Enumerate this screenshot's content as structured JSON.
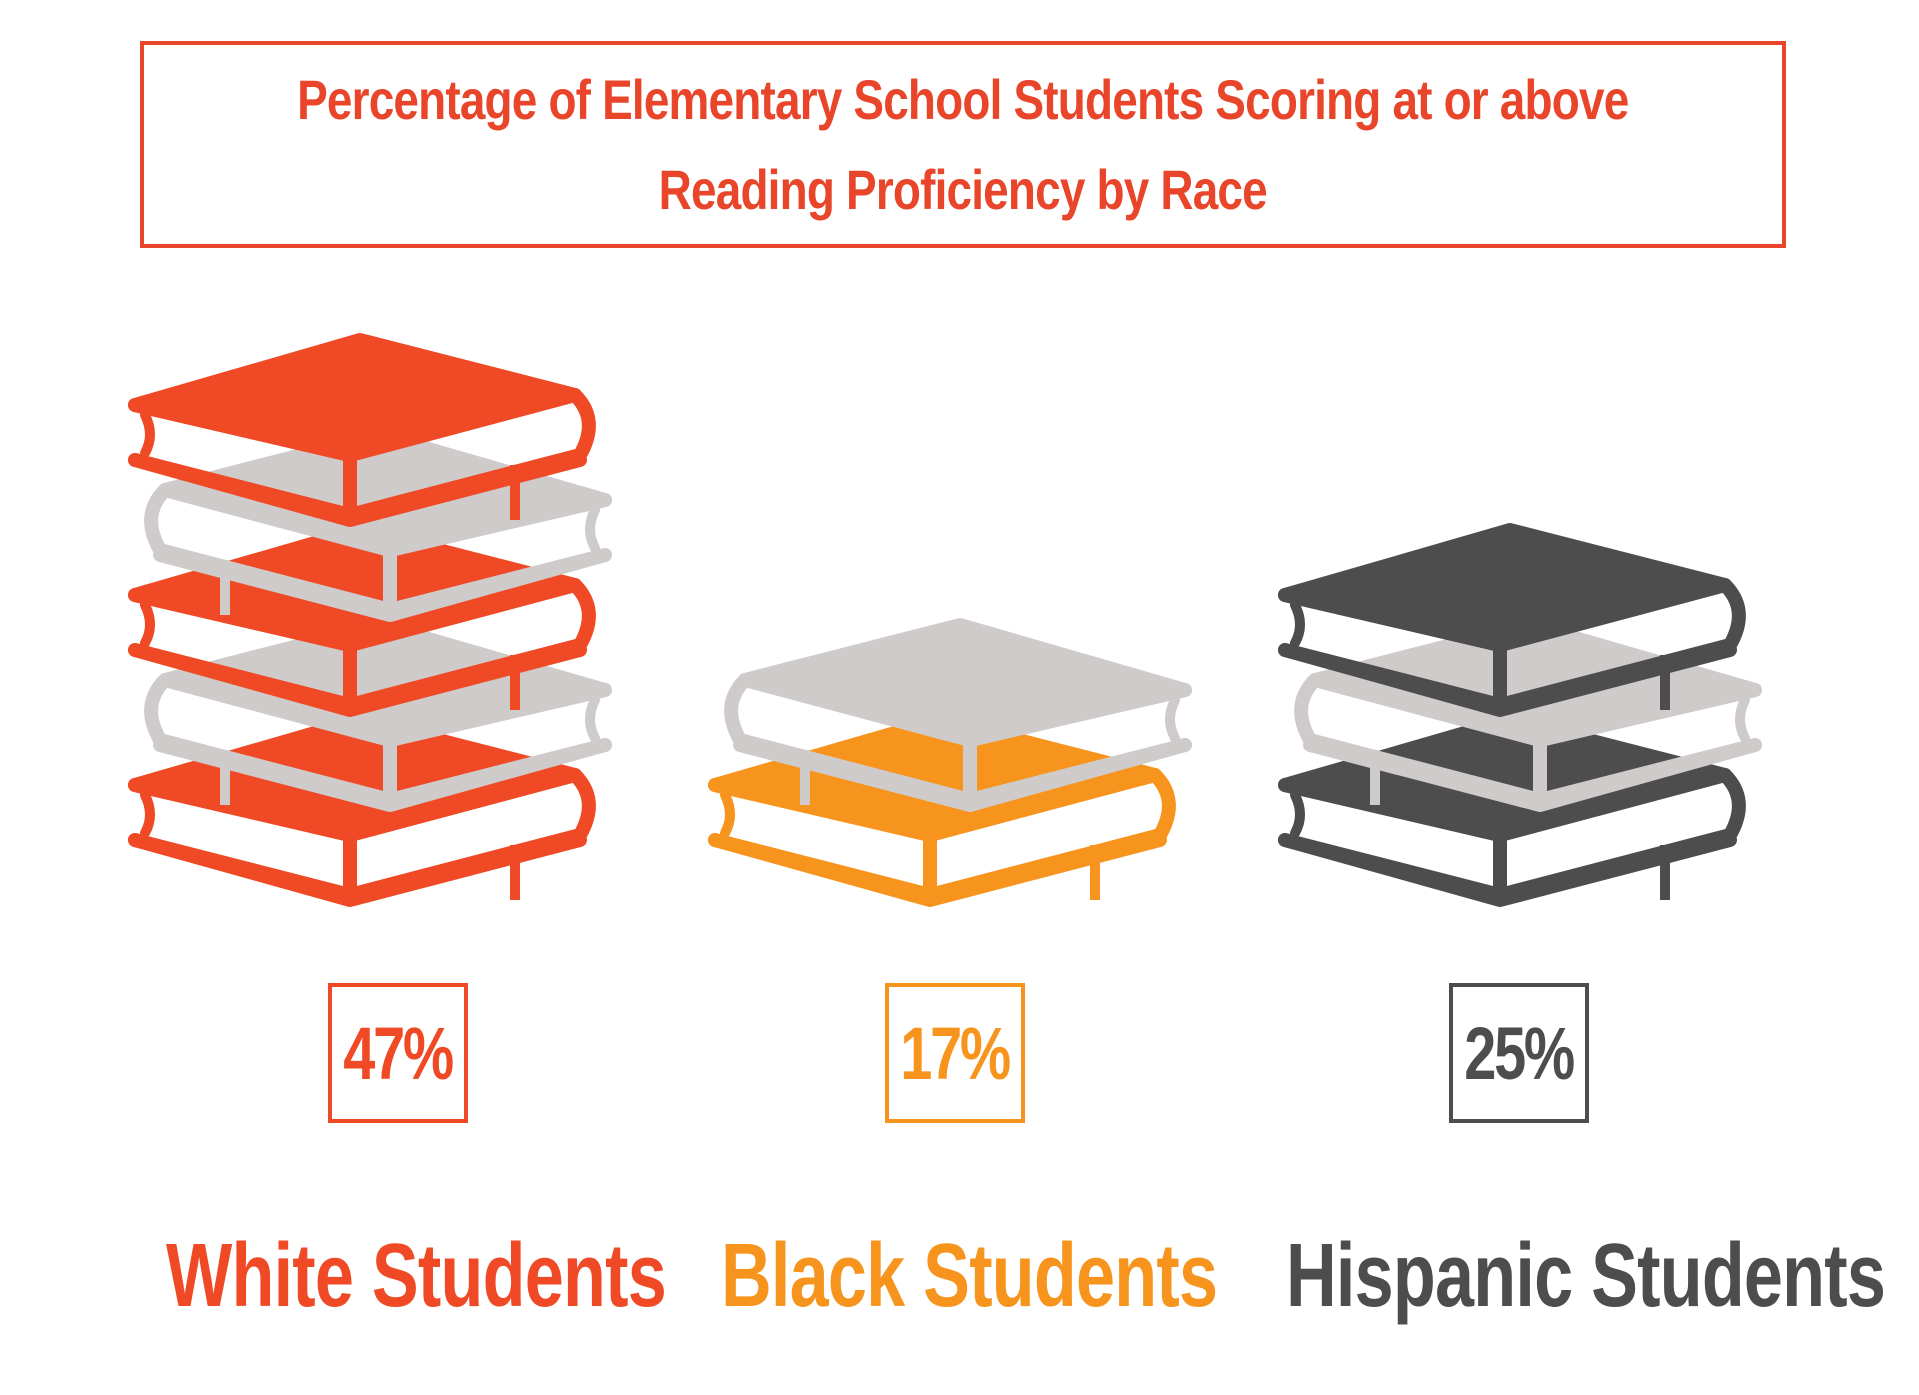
{
  "chart_data": {
    "type": "bar",
    "title": "Percentage of Elementary School Students Scoring at or above\nReading Proficiency by Race",
    "categories": [
      "White Students",
      "Black Students",
      "Hispanic Students"
    ],
    "values": [
      47,
      17,
      25
    ],
    "value_labels": [
      "47%",
      "17%",
      "25%"
    ],
    "colors": [
      "#ef4a25",
      "#f7941d",
      "#4d4d4d"
    ],
    "alt_color": "#cfcbcb",
    "unit": "%",
    "grid": false,
    "legend": "none"
  }
}
